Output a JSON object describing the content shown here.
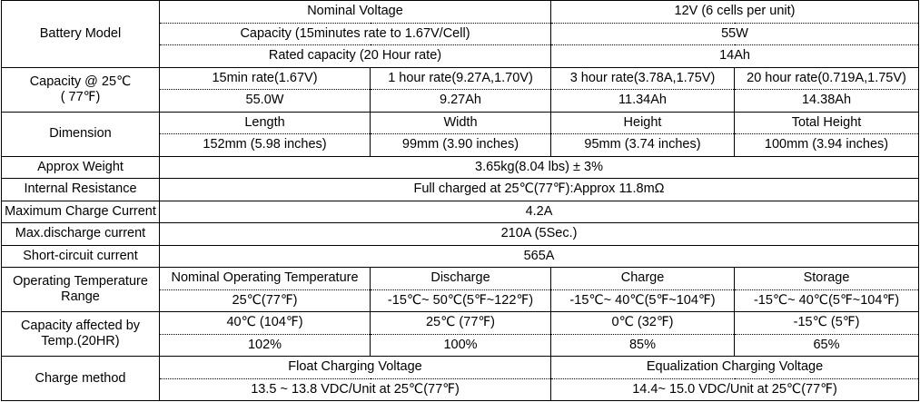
{
  "battery_model": {
    "label": "Battery Model",
    "nominal_voltage_label": "Nominal Voltage",
    "nominal_voltage_value": "12V (6 cells per unit)",
    "capacity_label": "Capacity (15minutes rate to 1.67V/Cell)",
    "capacity_value": "55W",
    "rated_capacity_label": "Rated capacity (20 Hour rate)",
    "rated_capacity_value": "14Ah"
  },
  "capacity_at": {
    "label_line1": "Capacity @ 25℃",
    "label_line2": "( 77℉)",
    "rates": [
      {
        "rate": "15min rate(1.67V)",
        "value": "55.0W"
      },
      {
        "rate": "1 hour rate(9.27A,1.70V)",
        "value": "9.27Ah"
      },
      {
        "rate": "3 hour rate(3.78A,1.75V)",
        "value": "11.34Ah"
      },
      {
        "rate": "20 hour rate(0.719A,1.75V)",
        "value": "14.38Ah"
      }
    ]
  },
  "dimension": {
    "label": "Dimension",
    "items": [
      {
        "name": "Length",
        "value": "152mm (5.98 inches)"
      },
      {
        "name": "Width",
        "value": "99mm (3.90 inches)"
      },
      {
        "name": "Height",
        "value": "95mm (3.74 inches)"
      },
      {
        "name": "Total Height",
        "value": "100mm (3.94 inches)"
      }
    ]
  },
  "approx_weight": {
    "label": "Approx Weight",
    "value": "3.65kg(8.04 lbs) ± 3%"
  },
  "internal_resistance": {
    "label": "Internal Resistance",
    "value": "Full charged at 25℃(77℉):Approx 11.8mΩ"
  },
  "max_charge_current": {
    "label": "Maximum Charge Current",
    "value": "4.2A"
  },
  "max_discharge_current": {
    "label": "Max.discharge current",
    "value": "210A (5Sec.)"
  },
  "short_circuit_current": {
    "label": "Short-circuit current",
    "value": "565A"
  },
  "operating_temperature": {
    "label_line1": "Operating Temperature",
    "label_line2": "Range",
    "items": [
      {
        "name": "Nominal Operating Temperature",
        "value": "25℃(77℉)"
      },
      {
        "name": "Discharge",
        "value": "-15℃~ 50℃(5℉~122℉)"
      },
      {
        "name": "Charge",
        "value": "-15℃~ 40℃(5℉~104℉)"
      },
      {
        "name": "Storage",
        "value": "-15℃~ 40℃(5℉~104℉)"
      }
    ]
  },
  "capacity_temp": {
    "label_line1": "Capacity affected by",
    "label_line2": "Temp.(20HR)",
    "items": [
      {
        "temp": "40℃ (104℉)",
        "value": "102%"
      },
      {
        "temp": "25℃ (77℉)",
        "value": "100%"
      },
      {
        "temp": "0℃ (32℉)",
        "value": "85%"
      },
      {
        "temp": "-15℃ (5℉)",
        "value": "65%"
      }
    ]
  },
  "charge_method": {
    "label": "Charge method",
    "float_label": "Float Charging Voltage",
    "float_value": "13.5 ~ 13.8 VDC/Unit at 25℃(77℉)",
    "equalization_label": "Equalization Charging Voltage",
    "equalization_value": "14.4~ 15.0 VDC/Unit at 25℃(77℉)"
  }
}
